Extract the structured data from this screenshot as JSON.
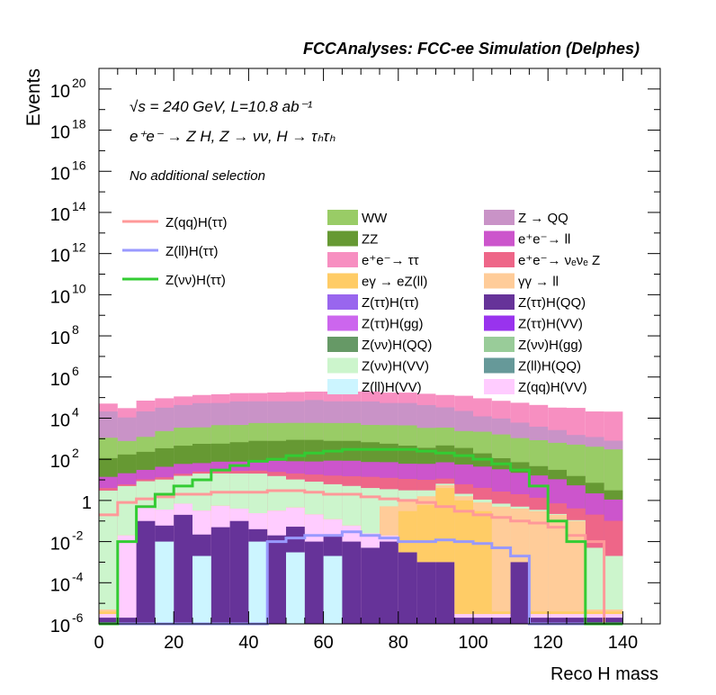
{
  "header": {
    "title": "FCCAnalyses: FCC-ee Simulation (Delphes)"
  },
  "annotations": {
    "energy_line": "√s = 240 GeV, L=10.8 ab⁻¹",
    "process_line": "e⁺e⁻ → Z H, Z → νν, H → τₕτₕ",
    "selection_line": "No additional selection"
  },
  "chart_data": {
    "type": "area",
    "xlabel": "Reco H mass",
    "ylabel": "Events",
    "xlim": [
      0,
      150
    ],
    "ylim": [
      1e-06,
      1e+21
    ],
    "yscale": "log",
    "x_ticks": [
      "0",
      "20",
      "40",
      "60",
      "80",
      "100",
      "120",
      "140"
    ],
    "y_ticks": [
      {
        "base": "10",
        "exp": "20"
      },
      {
        "base": "10",
        "exp": "18"
      },
      {
        "base": "10",
        "exp": "16"
      },
      {
        "base": "10",
        "exp": "14"
      },
      {
        "base": "10",
        "exp": "12"
      },
      {
        "base": "10",
        "exp": "10"
      },
      {
        "base": "10",
        "exp": "8"
      },
      {
        "base": "10",
        "exp": "6"
      },
      {
        "base": "10",
        "exp": "4"
      },
      {
        "base": "10",
        "exp": "2"
      },
      {
        "base": "1",
        "exp": ""
      },
      {
        "base": "10",
        "exp": "-2"
      },
      {
        "base": "10",
        "exp": "-4"
      },
      {
        "base": "10",
        "exp": "-6"
      }
    ],
    "bin_edges": [
      0,
      5,
      10,
      15,
      20,
      25,
      30,
      35,
      40,
      45,
      50,
      55,
      60,
      65,
      70,
      75,
      80,
      85,
      90,
      95,
      100,
      105,
      110,
      115,
      120,
      125,
      130,
      135,
      140
    ],
    "stacked_background": [
      {
        "name": "e⁺e⁻→ ττ",
        "color": "#f78fc1",
        "values": [
          30000.0,
          20000.0,
          50000.0,
          60000.0,
          70000.0,
          80000.0,
          90000.0,
          100000.0,
          100000.0,
          110000.0,
          120000.0,
          120000.0,
          130000.0,
          130000.0,
          130000.0,
          120000.0,
          120000.0,
          110000.0,
          100000.0,
          100000.0,
          80000.0,
          60000.0,
          50000.0,
          40000.0,
          30000.0,
          30000.0,
          20000.0,
          20000.0
        ]
      },
      {
        "name": "Z → QQ",
        "color": "#c993c7",
        "values": [
          20000.0,
          10000.0,
          20000.0,
          30000.0,
          40000.0,
          50000.0,
          50000.0,
          60000.0,
          60000.0,
          60000.0,
          60000.0,
          70000.0,
          60000.0,
          60000.0,
          60000.0,
          50000.0,
          50000.0,
          40000.0,
          30000.0,
          20000.0,
          10000.0,
          8000.0,
          5000.0,
          3000.0,
          2000.0,
          1000.0,
          800.0,
          500.0
        ]
      },
      {
        "name": "WW",
        "color": "#99cc66",
        "values": [
          1000.0,
          600.0,
          1000.0,
          2000.0,
          3000.0,
          3000.0,
          4000.0,
          4000.0,
          5000.0,
          5000.0,
          5000.0,
          5000.0,
          5000.0,
          5000.0,
          4000.0,
          4000.0,
          4000.0,
          3000.0,
          3000.0,
          2000.0,
          2000.0,
          1500.0,
          1000.0,
          800.0,
          600.0,
          500.0,
          400.0,
          300.0
        ]
      },
      {
        "name": "ZZ",
        "color": "#669933",
        "values": [
          100.0,
          150.0,
          200.0,
          300.0,
          400.0,
          500.0,
          500.0,
          600.0,
          700.0,
          700.0,
          800.0,
          800.0,
          700.0,
          700.0,
          600.0,
          500.0,
          400.0,
          300.0,
          400.0,
          300.0,
          150.0,
          80.0,
          50.0,
          30.0,
          20.0,
          10.0,
          5,
          2
        ]
      },
      {
        "name": "e⁺e⁻→ ll",
        "color": "#cc55cc",
        "values": [
          10.0,
          15.0,
          20.0,
          30.0,
          40.0,
          40.0,
          50.0,
          50.0,
          60.0,
          60.0,
          60.0,
          60.0,
          70.0,
          70.0,
          60.0,
          60.0,
          50.0,
          50.0,
          60.0,
          50.0,
          40.0,
          30.0,
          20.0,
          15.0,
          10.0,
          5,
          2,
          1
        ]
      },
      {
        "name": "e⁺e⁻→ νₑνₑ Z",
        "color": "#ee6688",
        "values": [
          1,
          1,
          2,
          3,
          4,
          5,
          6,
          7,
          8,
          9,
          10.0,
          10.0,
          10.0,
          10.0,
          10.0,
          9,
          8,
          7,
          5,
          4,
          3,
          2,
          1.5,
          1,
          0.5,
          0.3,
          0.2,
          0.1
        ]
      },
      {
        "name": "Z(νν)H(VV)",
        "color": "#ccf5cc",
        "values": [
          3,
          5,
          8,
          10.0,
          15.0,
          20.0,
          20.0,
          20.0,
          20.0,
          15.0,
          10.0,
          8,
          6,
          5,
          4,
          3,
          2,
          1.5,
          1,
          0.5,
          0.3,
          0.2,
          0.1,
          0.05,
          0.02,
          0.01,
          0.005,
          0.002
        ]
      },
      {
        "name": "γγ → ll",
        "color": "#ffcc99",
        "values": [
          1e-06,
          1e-06,
          1e-06,
          1e-06,
          1e-06,
          1e-06,
          1e-06,
          1e-06,
          1e-06,
          1e-06,
          1e-06,
          1e-06,
          1e-06,
          1e-06,
          1e-06,
          0.5,
          0.8,
          1,
          1.5,
          0.6,
          0.5,
          0.5,
          0.4,
          0.3,
          0.2,
          0.1,
          1e-06,
          1e-06
        ]
      },
      {
        "name": "eγ → eZ(ll)",
        "color": "#ffcc66",
        "values": [
          1e-06,
          1e-06,
          1e-06,
          1e-06,
          1e-06,
          1e-06,
          1e-06,
          1e-06,
          1e-06,
          1e-06,
          1e-06,
          1e-06,
          1e-06,
          1e-06,
          1e-06,
          1e-06,
          0.3,
          0.6,
          4,
          1,
          0.3,
          1e-06,
          1e-06,
          1e-06,
          1e-06,
          1e-06,
          1e-06,
          1e-06
        ]
      },
      {
        "name": "Z(qq)H(VV)",
        "color": "#ffccff",
        "values": [
          1e-06,
          0.02,
          0.5,
          0.3,
          0.5,
          0.3,
          0.5,
          0.3,
          0.2,
          0.3,
          0.4,
          0.2,
          0.1,
          0.05,
          0.02,
          0.01,
          1e-06,
          1e-06,
          1e-06,
          1e-06,
          1e-06,
          1e-06,
          1e-06,
          1e-06,
          1e-06,
          1e-06,
          1e-06,
          1e-06
        ]
      },
      {
        "name": "Z(ττ)H(QQ)",
        "color": "#663399",
        "values": [
          1e-06,
          1e-06,
          0.1,
          0.05,
          0.2,
          0.02,
          0.05,
          0.1,
          0.03,
          0.02,
          0.05,
          0.01,
          0.02,
          0.01,
          0.005,
          0.01,
          0.003,
          0.001,
          0.001,
          1e-06,
          1e-06,
          1e-06,
          0.001,
          1e-06,
          1e-06,
          1e-06,
          1e-06,
          1e-06
        ]
      },
      {
        "name": "Z(ll)H(VV)",
        "color": "#ccf5ff",
        "values": [
          1e-06,
          1e-06,
          1e-06,
          0.01,
          1e-06,
          0.002,
          1e-06,
          1e-06,
          0.01,
          1e-06,
          0.003,
          1e-06,
          0.002,
          1e-06,
          1e-06,
          1e-06,
          1e-06,
          1e-06,
          1e-06,
          1e-06,
          1e-06,
          1e-06,
          1e-06,
          1e-06,
          1e-06,
          1e-06,
          1e-06,
          1e-06
        ]
      }
    ],
    "legend_only": [
      {
        "name": "Z(ττ)H(ττ)",
        "color": "#9966ee"
      },
      {
        "name": "Z(ττ)H(gg)",
        "color": "#cc66ee"
      },
      {
        "name": "Z(ττ)H(VV)",
        "color": "#9933ee"
      },
      {
        "name": "Z(νν)H(QQ)",
        "color": "#669966"
      },
      {
        "name": "Z(νν)H(gg)",
        "color": "#99cc99"
      },
      {
        "name": "Z(ll)H(QQ)",
        "color": "#669999"
      }
    ],
    "signal_lines": [
      {
        "name": "Z(qq)H(ττ)",
        "color": "#ff9999",
        "values": [
          0.2,
          0.8,
          1.2,
          1.5,
          2,
          2,
          2.5,
          2.5,
          2.5,
          3,
          3,
          2.5,
          2,
          2,
          1.5,
          1.2,
          1,
          0.8,
          0.5,
          0.3,
          0.2,
          0.15,
          0.1,
          0.08,
          0.05,
          0.02,
          0.01,
          1e-06
        ]
      },
      {
        "name": "Z(ll)H(ττ)",
        "color": "#9999ff",
        "values": [
          1e-06,
          1e-06,
          1e-06,
          1e-06,
          1e-06,
          1e-06,
          1e-06,
          1e-06,
          1e-06,
          0.01,
          0.015,
          0.02,
          0.02,
          0.03,
          0.02,
          0.015,
          0.01,
          0.01,
          0.012,
          0.01,
          0.008,
          0.005,
          0.002,
          1e-06,
          1e-06,
          1e-06,
          1e-06,
          1e-06
        ]
      },
      {
        "name": "Z(νν)H(ττ)",
        "color": "#33cc33",
        "values": [
          1e-06,
          0.01,
          0.5,
          2,
          5,
          10.0,
          30.0,
          50.0,
          80.0,
          100.0,
          150.0,
          200.0,
          250.0,
          300.0,
          300.0,
          300.0,
          300.0,
          250.0,
          200.0,
          150.0,
          100.0,
          60.0,
          30.0,
          5,
          0.1,
          0.01,
          1e-06,
          1e-06
        ]
      }
    ],
    "legend_placement": "top-center"
  }
}
